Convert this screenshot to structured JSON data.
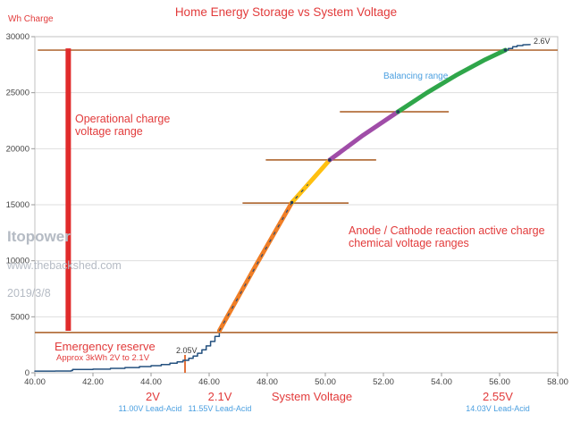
{
  "chart_data": {
    "type": "line",
    "title": "Home Energy Storage vs System Voltage",
    "xlabel": "System Voltage",
    "ylabel": "Wh Charge",
    "xlim": [
      40,
      58
    ],
    "ylim": [
      0,
      30000
    ],
    "grid": "horizontal",
    "legend": "none",
    "x_ticks": [
      {
        "v": 40,
        "label": "40.00"
      },
      {
        "v": 42,
        "label": "42.00"
      },
      {
        "v": 44,
        "label": "44.00"
      },
      {
        "v": 46,
        "label": "46.00"
      },
      {
        "v": 48,
        "label": "48.00"
      },
      {
        "v": 50,
        "label": "50.00"
      },
      {
        "v": 52,
        "label": "52.00"
      },
      {
        "v": 54,
        "label": "54.00"
      },
      {
        "v": 56,
        "label": "56.00"
      },
      {
        "v": 58,
        "label": "58.00"
      }
    ],
    "y_ticks": [
      {
        "v": 0,
        "label": "0"
      },
      {
        "v": 5000,
        "label": "5000"
      },
      {
        "v": 10000,
        "label": "10000"
      },
      {
        "v": 15000,
        "label": "15000"
      },
      {
        "v": 20000,
        "label": "20000"
      },
      {
        "v": 25000,
        "label": "25000"
      },
      {
        "v": 30000,
        "label": "30000"
      }
    ],
    "series": [
      {
        "name": "wh-charge-curve",
        "color": "#24517F",
        "width": 1.5,
        "points": [
          [
            40,
            150
          ],
          [
            40.7,
            160,
            1
          ],
          [
            41.25,
            200,
            1
          ],
          [
            41.3,
            300,
            1
          ],
          [
            42,
            330,
            1
          ],
          [
            42.6,
            400,
            1
          ],
          [
            43.1,
            470,
            1
          ],
          [
            43.6,
            560,
            1
          ],
          [
            44,
            640,
            1
          ],
          [
            44.35,
            740,
            1
          ],
          [
            44.65,
            850,
            1
          ],
          [
            44.9,
            980,
            1
          ],
          [
            45.1,
            1120,
            1
          ],
          [
            45.3,
            1300,
            1
          ],
          [
            45.45,
            1500,
            1
          ],
          [
            45.6,
            1750,
            1
          ],
          [
            45.75,
            2050,
            1
          ],
          [
            45.9,
            2400,
            1
          ],
          [
            46.05,
            2800,
            1
          ],
          [
            46.2,
            3250,
            1
          ],
          [
            46.35,
            3750,
            1
          ],
          [
            47,
            6800
          ],
          [
            47.6,
            9550
          ],
          [
            48.2,
            12300
          ],
          [
            48.85,
            15200
          ],
          [
            49.5,
            17100
          ],
          [
            50.15,
            19000
          ],
          [
            51.3,
            21200
          ],
          [
            52.5,
            23300
          ],
          [
            53.5,
            25000
          ],
          [
            54.5,
            26550
          ],
          [
            55.5,
            27950
          ],
          [
            56.2,
            28800
          ],
          [
            56.3,
            28950,
            1
          ],
          [
            56.45,
            29100,
            1
          ],
          [
            56.6,
            29200,
            1
          ],
          [
            56.8,
            29270,
            1
          ],
          [
            57.05,
            29290
          ]
        ]
      },
      {
        "name": "reaction-segment-orange",
        "color": "#F07E26",
        "width": 5,
        "points": [
          [
            46.35,
            3750
          ],
          [
            47.6,
            9550
          ],
          [
            48.85,
            15200
          ]
        ]
      },
      {
        "name": "reaction-segment-yellow",
        "color": "#FFC010",
        "width": 5,
        "points": [
          [
            48.85,
            15200
          ],
          [
            49.5,
            17100
          ],
          [
            50.15,
            19000
          ]
        ]
      },
      {
        "name": "reaction-segment-purple",
        "color": "#A04DA8",
        "width": 5,
        "points": [
          [
            50.15,
            19000
          ],
          [
            51.3,
            21200
          ],
          [
            52.5,
            23300
          ]
        ]
      },
      {
        "name": "balancing-segment-green",
        "color": "#2FA64A",
        "width": 5,
        "points": [
          [
            52.5,
            23300
          ],
          [
            53.5,
            25000
          ],
          [
            54.5,
            26550
          ],
          [
            55.5,
            27950
          ],
          [
            56.2,
            28800
          ]
        ]
      }
    ],
    "dashed_overlay": {
      "name": "data-point-dashes",
      "color": "#2A4A75",
      "points": [
        [
          46.35,
          3750
        ],
        [
          48.85,
          15200
        ],
        [
          49.4,
          16800
        ]
      ]
    },
    "junction_dots": {
      "color": "#223C5E",
      "points": [
        [
          48.85,
          15200
        ],
        [
          50.15,
          19000
        ],
        [
          52.5,
          23300
        ],
        [
          56.2,
          28800
        ]
      ]
    },
    "marker_lines": [
      {
        "name": "full-charge-line",
        "wh": 28800,
        "v1": 40.1,
        "v2": 58,
        "color": "#B4713E"
      },
      {
        "name": "emergency-reserve-line",
        "wh": 3600,
        "v1": 40,
        "v2": 58,
        "color": "#B4713E"
      },
      {
        "name": "plateau-line-1",
        "wh": 15150,
        "v1": 47.15,
        "v2": 50.8,
        "color": "#B4713E"
      },
      {
        "name": "plateau-line-2",
        "wh": 19000,
        "v1": 47.95,
        "v2": 51.75,
        "color": "#B4713E"
      },
      {
        "name": "plateau-line-3",
        "wh": 23300,
        "v1": 50.5,
        "v2": 54.25,
        "color": "#B4713E"
      }
    ],
    "range_bar": {
      "name": "operational-range-bar",
      "v": 41.15,
      "wh1": 3750,
      "wh2": 28950,
      "color": "#E02B2B",
      "width": 6
    },
    "voltage_marker": {
      "v": 45.17,
      "wh_top": 1600,
      "color": "#E2703A",
      "label": "2.05V"
    }
  },
  "annotations": {
    "operational": "Operational charge\nvoltage range",
    "balancing": "Balancing range",
    "v26": "2.6V",
    "anode": "Anode / Cathode reaction active charge\nchemical voltage ranges",
    "emergency": "Emergency reserve",
    "emergency_sub": "Approx 3kWh 2V to 2.1V"
  },
  "watermark": {
    "line1": "Itopower",
    "line2": "www.thebackshed.com",
    "line3": "2019/3/8"
  },
  "x_sublabels": {
    "cell_2v": "2V",
    "cell_2v_sub": "11.00V Lead-Acid",
    "cell_21v": "2.1V",
    "cell_21v_sub": "11.55V Lead-Acid",
    "cell_255v": "2.55V",
    "cell_255v_sub": "14.03V Lead-Acid"
  },
  "colors": {
    "annotation_red": "#E23B3B",
    "lead_acid_blue": "#4A9FE0",
    "watermark_gray": "#B5BBC4",
    "curve_navy": "#24517F",
    "plateau_brown": "#B4713E",
    "range_bar_red": "#E02B2B"
  }
}
